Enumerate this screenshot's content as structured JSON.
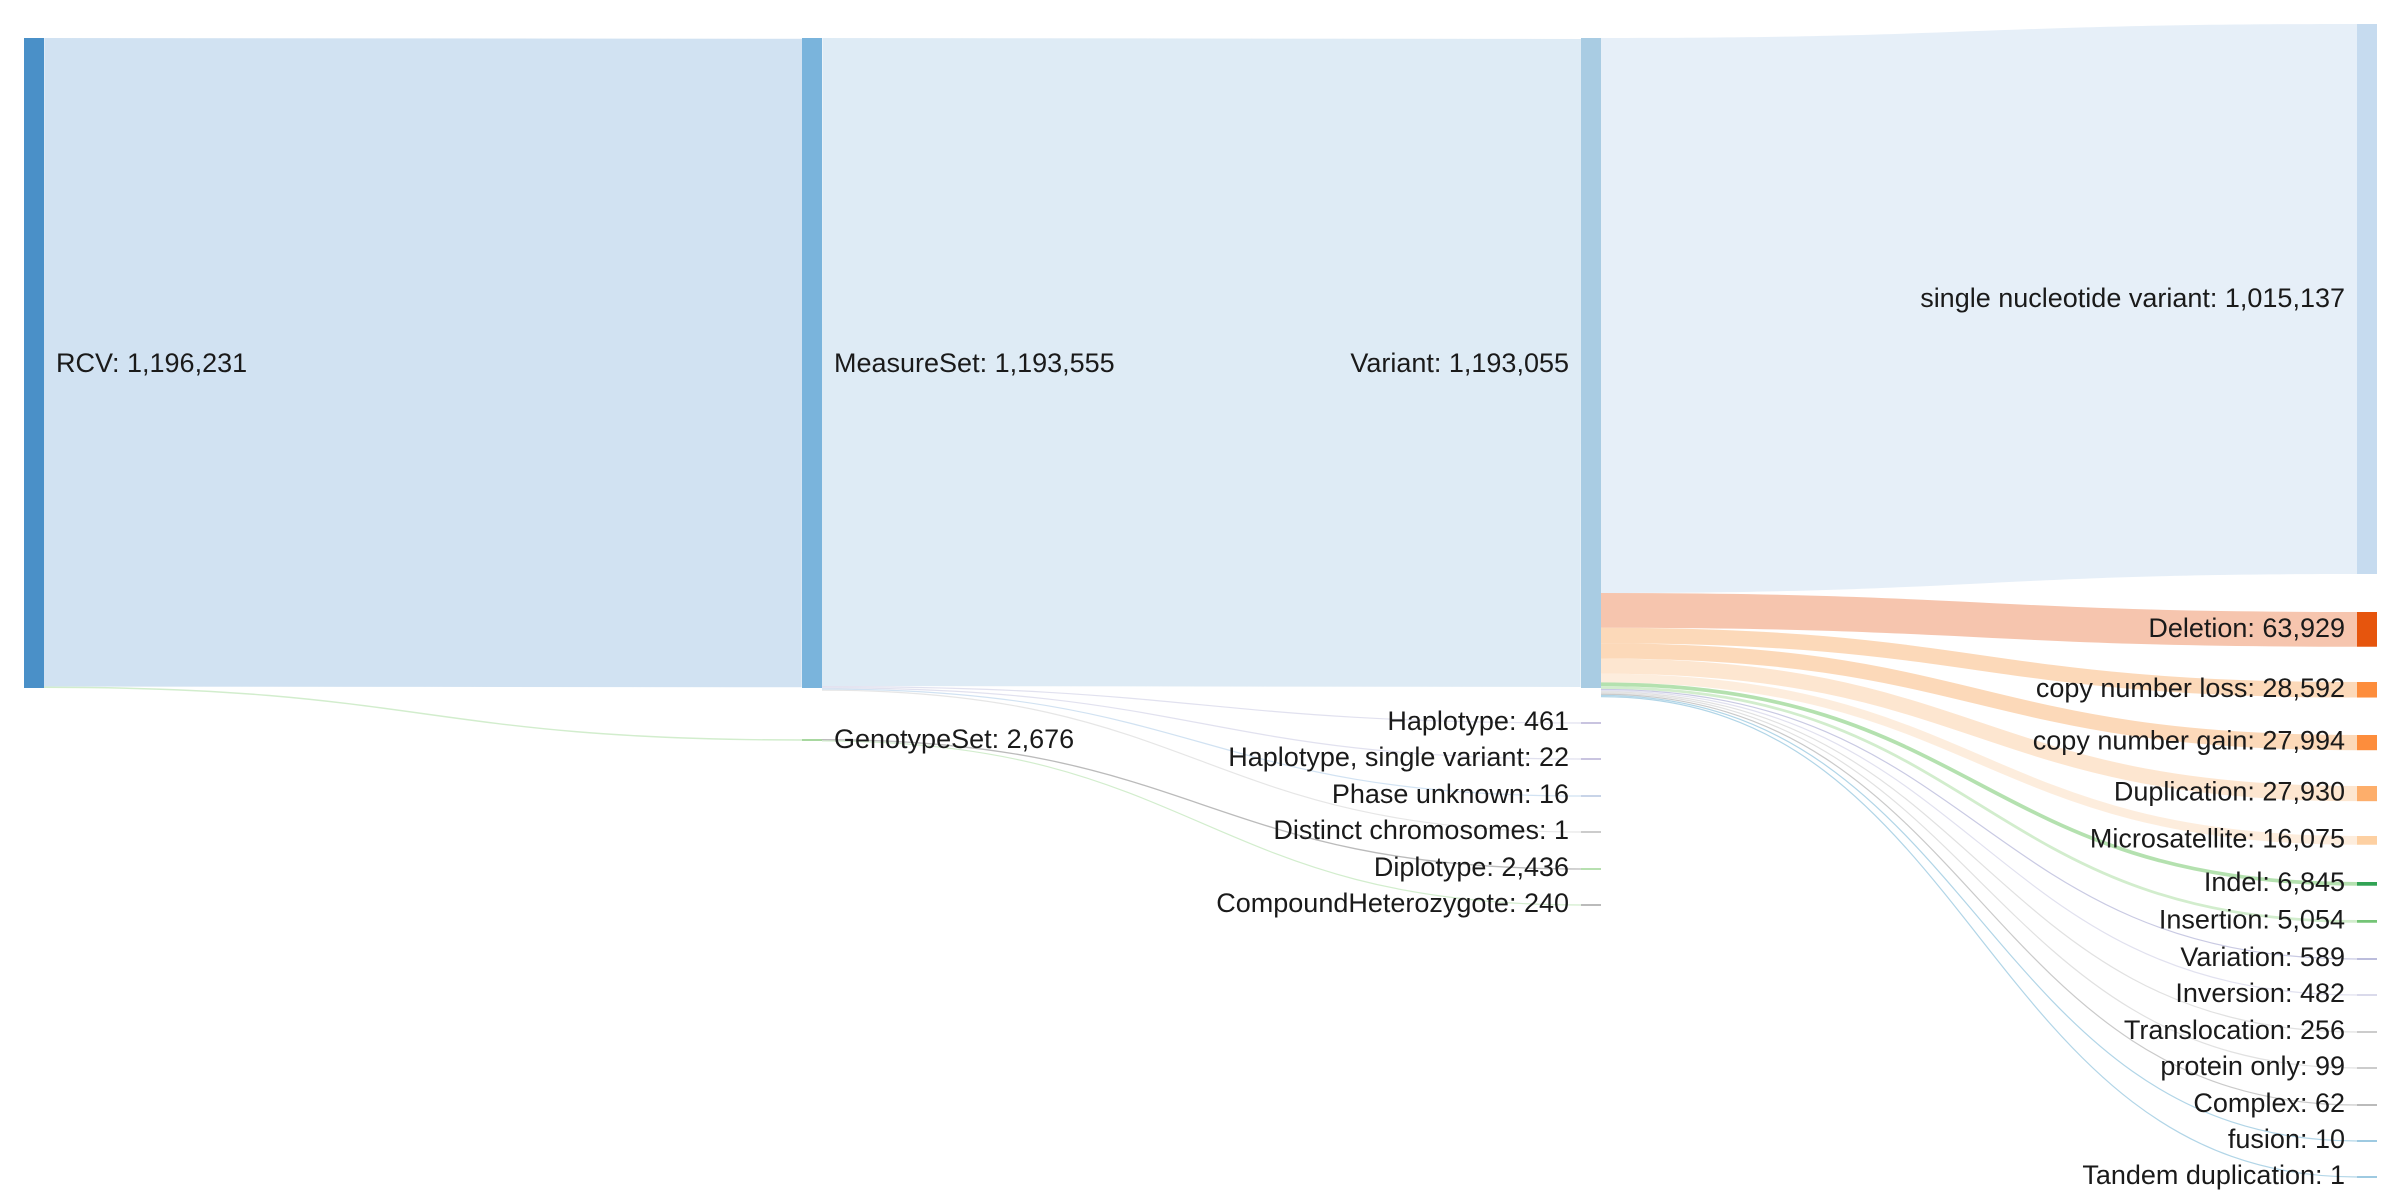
{
  "chart_data": {
    "type": "sankey",
    "nodes": [
      {
        "id": "rcv",
        "label": "RCV: 1,196,231",
        "value": 1196231,
        "color": "#4a90c8"
      },
      {
        "id": "measureset",
        "label": "MeasureSet: 1,193,555",
        "value": 1193555,
        "color": "#7ab4dc"
      },
      {
        "id": "genotypeset",
        "label": "GenotypeSet: 2,676",
        "value": 2676,
        "color": "#a8d8a0"
      },
      {
        "id": "variant",
        "label": "Variant: 1,193,055",
        "value": 1193055,
        "color": "#a9cce3"
      },
      {
        "id": "haplotype",
        "label": "Haplotype: 461",
        "value": 461,
        "color": "#c9c4e0"
      },
      {
        "id": "hap_single",
        "label": "Haplotype, single variant: 22",
        "value": 22,
        "color": "#c9c4e0"
      },
      {
        "id": "phase_unknown",
        "label": "Phase unknown: 16",
        "value": 16,
        "color": "#c8d4e8"
      },
      {
        "id": "distinct_chrom",
        "label": "Distinct chromosomes: 1",
        "value": 1,
        "color": "#cccccc"
      },
      {
        "id": "diplotype",
        "label": "Diplotype: 2,436",
        "value": 2436,
        "color": "#b7e0b0"
      },
      {
        "id": "compound_het",
        "label": "CompoundHeterozygote: 240",
        "value": 240,
        "color": "#bbbbbb"
      },
      {
        "id": "snv",
        "label": "single nucleotide variant: 1,015,137",
        "value": 1015137,
        "color": "#c6dbef"
      },
      {
        "id": "deletion",
        "label": "Deletion: 63,929",
        "value": 63929,
        "color": "#e6550d"
      },
      {
        "id": "cn_loss",
        "label": "copy number loss: 28,592",
        "value": 28592,
        "color": "#fd8d3c"
      },
      {
        "id": "cn_gain",
        "label": "copy number gain: 27,994",
        "value": 27994,
        "color": "#fd8d3c"
      },
      {
        "id": "duplication",
        "label": "Duplication: 27,930",
        "value": 27930,
        "color": "#fdae6b"
      },
      {
        "id": "microsatellite",
        "label": "Microsatellite: 16,075",
        "value": 16075,
        "color": "#fdd0a2"
      },
      {
        "id": "indel",
        "label": "Indel: 6,845",
        "value": 6845,
        "color": "#31a354"
      },
      {
        "id": "insertion",
        "label": "Insertion: 5,054",
        "value": 5054,
        "color": "#74c476"
      },
      {
        "id": "variation",
        "label": "Variation: 589",
        "value": 589,
        "color": "#bcbddc"
      },
      {
        "id": "inversion",
        "label": "Inversion: 482",
        "value": 482,
        "color": "#dadaeb"
      },
      {
        "id": "translocation",
        "label": "Translocation: 256",
        "value": 256,
        "color": "#cccccc"
      },
      {
        "id": "protein_only",
        "label": "protein only: 99",
        "value": 99,
        "color": "#cccccc"
      },
      {
        "id": "complex",
        "label": "Complex: 62",
        "value": 62,
        "color": "#bbbbbb"
      },
      {
        "id": "fusion",
        "label": "fusion: 10",
        "value": 10,
        "color": "#9ecae1"
      },
      {
        "id": "tandem_dup",
        "label": "Tandem duplication: 1",
        "value": 1,
        "color": "#9ecae1"
      }
    ],
    "links": [
      {
        "source": "rcv",
        "target": "measureset",
        "value": 1193555,
        "color": "#c6dbef"
      },
      {
        "source": "rcv",
        "target": "genotypeset",
        "value": 2676,
        "color": "#c7e9c0"
      },
      {
        "source": "measureset",
        "target": "variant",
        "value": 1193055,
        "color": "#d6e6f2"
      },
      {
        "source": "measureset",
        "target": "haplotype",
        "value": 461,
        "color": "#dadaeb"
      },
      {
        "source": "measureset",
        "target": "hap_single",
        "value": 22,
        "color": "#dadaeb"
      },
      {
        "source": "measureset",
        "target": "phase_unknown",
        "value": 16,
        "color": "#c6dbef"
      },
      {
        "source": "measureset",
        "target": "distinct_chrom",
        "value": 1,
        "color": "#e0e0e0"
      },
      {
        "source": "genotypeset",
        "target": "diplotype",
        "value": 2436,
        "color": "#aaaaaa"
      },
      {
        "source": "genotypeset",
        "target": "compound_het",
        "value": 240,
        "color": "#c7e9c0"
      },
      {
        "source": "variant",
        "target": "snv",
        "value": 1015137,
        "color": "#dde9f5"
      },
      {
        "source": "variant",
        "target": "deletion",
        "value": 63929,
        "color": "#f4b79a"
      },
      {
        "source": "variant",
        "target": "cn_loss",
        "value": 28592,
        "color": "#fbcfa8"
      },
      {
        "source": "variant",
        "target": "cn_gain",
        "value": 27994,
        "color": "#fbcfa8"
      },
      {
        "source": "variant",
        "target": "duplication",
        "value": 27930,
        "color": "#fde0c4"
      },
      {
        "source": "variant",
        "target": "microsatellite",
        "value": 16075,
        "color": "#fde8d4"
      },
      {
        "source": "variant",
        "target": "indel",
        "value": 6845,
        "color": "#a1d99b"
      },
      {
        "source": "variant",
        "target": "insertion",
        "value": 5054,
        "color": "#c7e9c0"
      },
      {
        "source": "variant",
        "target": "variation",
        "value": 589,
        "color": "#bcbddc"
      },
      {
        "source": "variant",
        "target": "inversion",
        "value": 482,
        "color": "#dadaeb"
      },
      {
        "source": "variant",
        "target": "translocation",
        "value": 256,
        "color": "#d9d9d9"
      },
      {
        "source": "variant",
        "target": "protein_only",
        "value": 99,
        "color": "#d9d9d9"
      },
      {
        "source": "variant",
        "target": "complex",
        "value": 62,
        "color": "#bdbdbd"
      },
      {
        "source": "variant",
        "target": "fusion",
        "value": 10,
        "color": "#9ecae1"
      },
      {
        "source": "variant",
        "target": "tandem_dup",
        "value": 1,
        "color": "#9ecae1"
      }
    ]
  }
}
